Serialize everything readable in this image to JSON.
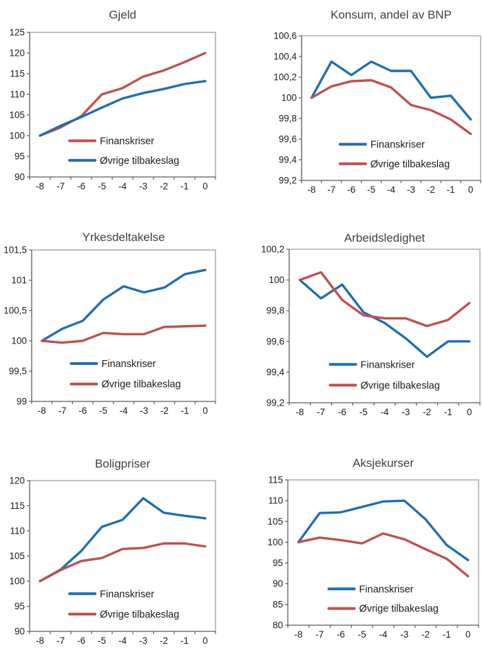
{
  "page": {
    "background": "#ffffff",
    "text_color": "#1a1a1a",
    "axis_color": "#595959"
  },
  "colors": {
    "red": "#C0504D",
    "blue": "#1F6EB4"
  },
  "chart_data": [
    {
      "type": "line",
      "title": "Gjeld",
      "x": [
        -8,
        -7,
        -6,
        -5,
        -4,
        -3,
        -2,
        -1,
        0
      ],
      "xtick_labels": [
        "-8",
        "-7",
        "-6",
        "-5",
        "-4",
        "-3",
        "-2",
        "-1",
        "0"
      ],
      "ylim": [
        90,
        125
      ],
      "ytick_labels": [
        "125",
        "120",
        "115",
        "110",
        "105",
        "100",
        "95",
        "90"
      ],
      "grid": false,
      "legend_position": "inside-bottom-left",
      "series": [
        {
          "name": "Finanskriser",
          "color": "#C0504D",
          "values": [
            100,
            102,
            104.7,
            110,
            111.5,
            114.3,
            115.8,
            117.8,
            120
          ]
        },
        {
          "name": "Øvrige tilbakeslag",
          "color": "#1F6EB4",
          "values": [
            100,
            102.4,
            104.5,
            106.8,
            109,
            110.3,
            111.3,
            112.5,
            113.2
          ]
        }
      ]
    },
    {
      "type": "line",
      "title": "Konsum, andel av BNP",
      "x": [
        -8,
        -7,
        -6,
        -5,
        -4,
        -3,
        -2,
        -1,
        0
      ],
      "xtick_labels": [
        "-8",
        "-7",
        "-6",
        "-5",
        "-4",
        "-3",
        "-2",
        "-1",
        "0"
      ],
      "ylim": [
        99.2,
        100.6
      ],
      "ytick_labels": [
        "100,6",
        "100,4",
        "100,2",
        "100",
        "99,8",
        "99,6",
        "99,4",
        "99,2"
      ],
      "grid": false,
      "legend_position": "inside-bottom-left",
      "series": [
        {
          "name": "Finanskriser",
          "color": "#1F6EB4",
          "values": [
            100,
            100.35,
            100.22,
            100.35,
            100.26,
            100.26,
            100,
            100.02,
            99.79
          ]
        },
        {
          "name": "Øvrige tilbakeslag",
          "color": "#C0504D",
          "values": [
            100,
            100.11,
            100.16,
            100.17,
            100.1,
            99.93,
            99.88,
            99.79,
            99.65
          ]
        }
      ]
    },
    {
      "type": "line",
      "title": "Yrkesdeltakelse",
      "x": [
        -8,
        -7,
        -6,
        -5,
        -4,
        -3,
        -2,
        -1,
        0
      ],
      "xtick_labels": [
        "-8",
        "-7",
        "-6",
        "-5",
        "-4",
        "-3",
        "-2",
        "-1",
        "0"
      ],
      "ylim": [
        99,
        101.5
      ],
      "ytick_labels": [
        "101,5",
        "101",
        "100,5",
        "100",
        "99,5",
        "99"
      ],
      "grid": false,
      "legend_position": "inside-bottom-left",
      "series": [
        {
          "name": "Finanskriser",
          "color": "#1F6EB4",
          "values": [
            100,
            100.2,
            100.33,
            100.68,
            100.9,
            100.8,
            100.88,
            101.1,
            101.17
          ]
        },
        {
          "name": "Øvrige tilbakeslag",
          "color": "#C0504D",
          "values": [
            100,
            99.97,
            100,
            100.13,
            100.11,
            100.11,
            100.23,
            100.24,
            100.25
          ]
        }
      ]
    },
    {
      "type": "line",
      "title": "Arbeidsledighet",
      "x": [
        -8,
        -7,
        -6,
        -5,
        -4,
        -3,
        -2,
        -1,
        0
      ],
      "xtick_labels": [
        "-8",
        "-7",
        "-6",
        "-5",
        "-4",
        "-3",
        "-2",
        "-1",
        "0"
      ],
      "ylim": [
        99.2,
        100.2
      ],
      "ytick_labels": [
        "100,2",
        "100",
        "99,8",
        "99,6",
        "99,4",
        "99,2"
      ],
      "grid": false,
      "legend_position": "inside-bottom-left",
      "series": [
        {
          "name": "Finanskriser",
          "color": "#1F6EB4",
          "values": [
            100,
            99.88,
            99.97,
            99.79,
            99.72,
            99.62,
            99.5,
            99.6,
            99.6
          ]
        },
        {
          "name": "Øvrige tilbakeslag",
          "color": "#C0504D",
          "values": [
            100,
            100.05,
            99.87,
            99.77,
            99.75,
            99.75,
            99.7,
            99.74,
            99.85
          ]
        }
      ]
    },
    {
      "type": "line",
      "title": "Boligpriser",
      "x": [
        -8,
        -7,
        -6,
        -5,
        -4,
        -3,
        -2,
        -1,
        0
      ],
      "xtick_labels": [
        "-8",
        "-7",
        "-6",
        "-5",
        "-4",
        "-3",
        "-2",
        "-1",
        "0"
      ],
      "ylim": [
        90,
        120
      ],
      "ytick_labels": [
        "120",
        "115",
        "110",
        "105",
        "100",
        "95",
        "90"
      ],
      "grid": false,
      "legend_position": "inside-bottom-left",
      "series": [
        {
          "name": "Finanskriser",
          "color": "#1F6EB4",
          "values": [
            100,
            102.3,
            106,
            110.8,
            112.2,
            116.5,
            113.6,
            113,
            112.5
          ]
        },
        {
          "name": "Øvrige tilbakeslag",
          "color": "#C0504D",
          "values": [
            100,
            102.2,
            104,
            104.6,
            106.4,
            106.6,
            107.5,
            107.5,
            106.9
          ]
        }
      ]
    },
    {
      "type": "line",
      "title": "Aksjekurser",
      "x": [
        -8,
        -7,
        -6,
        -5,
        -4,
        -3,
        -2,
        -1,
        0
      ],
      "xtick_labels": [
        "-8",
        "-7",
        "-6",
        "-5",
        "-4",
        "-3",
        "-2",
        "-1",
        "0"
      ],
      "ylim": [
        80,
        115
      ],
      "ytick_labels": [
        "115",
        "110",
        "105",
        "100",
        "95",
        "90",
        "85",
        "80"
      ],
      "grid": false,
      "legend_position": "inside-bottom-left",
      "series": [
        {
          "name": "Finanskriser",
          "color": "#1F6EB4",
          "values": [
            100,
            107,
            107.2,
            108.5,
            109.8,
            110,
            105.5,
            99.3,
            95.7
          ]
        },
        {
          "name": "Øvrige tilbakeslag",
          "color": "#C0504D",
          "values": [
            100,
            101.1,
            100.5,
            99.7,
            102.1,
            100.7,
            98.3,
            96,
            91.8
          ]
        }
      ]
    }
  ]
}
